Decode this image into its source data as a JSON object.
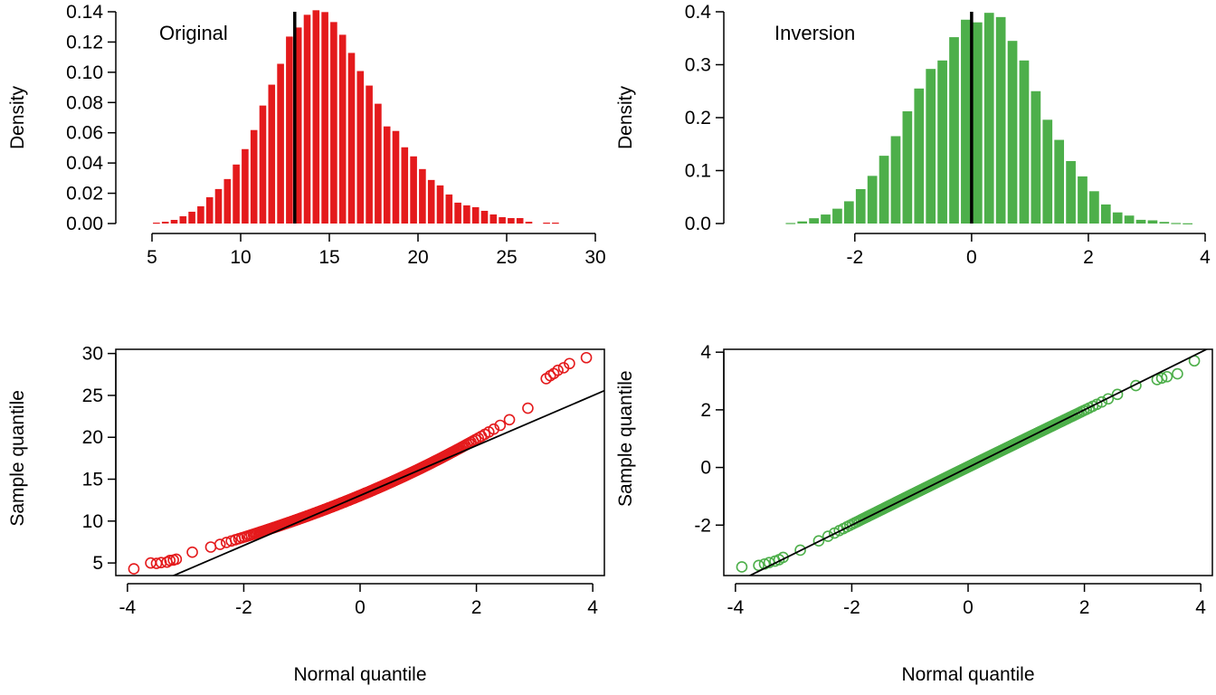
{
  "chart_data": [
    {
      "type": "histogram",
      "annotation": "Original",
      "xlabel": "",
      "ylabel": "Density",
      "xlim": [
        5,
        30
      ],
      "ylim": [
        0,
        0.14
      ],
      "x_ticks": [
        "5",
        "10",
        "15",
        "20",
        "25",
        "30"
      ],
      "y_ticks": [
        "0.00",
        "0.02",
        "0.04",
        "0.06",
        "0.08",
        "0.10",
        "0.12",
        "0.14"
      ],
      "vline": 13.05,
      "color": "#e41a1c",
      "bin_start": 5.0,
      "bin_width": 0.5,
      "values": [
        0.0006,
        0.0012,
        0.0024,
        0.0048,
        0.0078,
        0.0114,
        0.0174,
        0.0228,
        0.0294,
        0.039,
        0.0492,
        0.0618,
        0.078,
        0.0918,
        0.1056,
        0.1236,
        0.1296,
        0.138,
        0.141,
        0.1398,
        0.1332,
        0.1248,
        0.1128,
        0.1008,
        0.0912,
        0.0792,
        0.0642,
        0.0612,
        0.0504,
        0.0444,
        0.036,
        0.0288,
        0.0252,
        0.0192,
        0.0138,
        0.012,
        0.0108,
        0.0084,
        0.006,
        0.0042,
        0.0036,
        0.0036,
        0.0012,
        0,
        0.0006,
        0.0006,
        0,
        0,
        0,
        0
      ]
    },
    {
      "type": "histogram",
      "annotation": "Inversion",
      "xlabel": "",
      "ylabel": "Density",
      "xlim": [
        -3.5,
        4
      ],
      "ylim": [
        0,
        0.4
      ],
      "x_ticks": [
        "-2",
        "0",
        "2",
        "4"
      ],
      "y_ticks": [
        "0.0",
        "0.1",
        "0.2",
        "0.3",
        "0.4"
      ],
      "vline": 0.0,
      "color": "#4daf4a",
      "bin_start": -3.2,
      "bin_width": 0.2,
      "values": [
        0.001,
        0.004,
        0.01,
        0.017,
        0.028,
        0.042,
        0.065,
        0.09,
        0.128,
        0.165,
        0.212,
        0.255,
        0.292,
        0.308,
        0.352,
        0.385,
        0.38,
        0.398,
        0.39,
        0.345,
        0.308,
        0.25,
        0.196,
        0.158,
        0.118,
        0.089,
        0.061,
        0.036,
        0.021,
        0.015,
        0.007,
        0.006,
        0.003,
        0.001,
        0.0005
      ]
    },
    {
      "type": "scatter",
      "xlabel": "Normal quantile",
      "ylabel": "Sample quantile",
      "xlim": [
        -4.2,
        4.2
      ],
      "ylim": [
        3.5,
        30.5
      ],
      "x_ticks": [
        "-4",
        "-2",
        "0",
        "2",
        "4"
      ],
      "y_ticks": [
        "5",
        "10",
        "15",
        "20",
        "25",
        "30"
      ],
      "color": "#e41a1c",
      "reference_line": {
        "intercept": 13.05,
        "slope": 2.98
      },
      "qq_model": "original",
      "tail_points": {
        "x": [
          -3.89,
          -3.6,
          -3.5,
          -3.42,
          -3.32,
          -3.27,
          -3.21,
          -3.16,
          3.2,
          3.27,
          3.33,
          3.4,
          3.5,
          3.6,
          3.89
        ],
        "y": [
          4.3,
          5.0,
          4.95,
          5.05,
          5.1,
          5.3,
          5.35,
          5.45,
          27.0,
          27.35,
          27.6,
          28.0,
          28.3,
          28.8,
          29.5
        ]
      }
    },
    {
      "type": "scatter",
      "xlabel": "Normal quantile",
      "ylabel": "Sample quantile",
      "xlim": [
        -4.2,
        4.2
      ],
      "ylim": [
        -3.75,
        4.1
      ],
      "x_ticks": [
        "-4",
        "-2",
        "0",
        "2",
        "4"
      ],
      "y_ticks": [
        "-2",
        "0",
        "2",
        "4"
      ],
      "color": "#4daf4a",
      "reference_line": {
        "intercept": 0,
        "slope": 1
      },
      "qq_model": "inversion",
      "tail_points": {
        "x": [
          -3.89,
          -3.6,
          -3.5,
          -3.42,
          -3.32,
          -3.25,
          -3.18,
          3.25,
          3.33,
          3.42,
          3.6,
          3.89
        ],
        "y": [
          -3.45,
          -3.4,
          -3.35,
          -3.3,
          -3.25,
          -3.2,
          -3.12,
          3.05,
          3.1,
          3.15,
          3.25,
          3.7
        ]
      }
    }
  ]
}
